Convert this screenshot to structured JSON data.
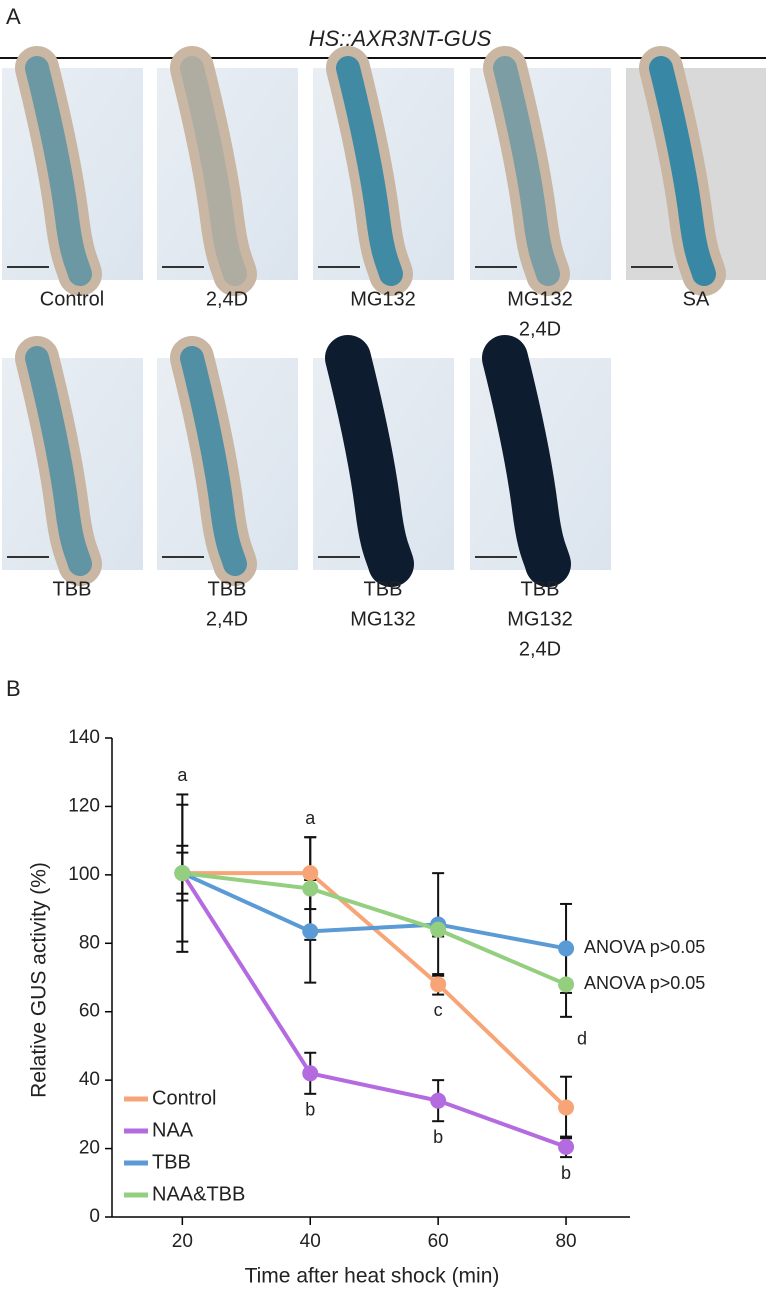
{
  "panel_a": {
    "label": "A",
    "title": "HS::AXR3NT-GUS",
    "images": [
      {
        "caption": [
          "Control"
        ]
      },
      {
        "caption": [
          "2,4D"
        ]
      },
      {
        "caption": [
          "MG132"
        ]
      },
      {
        "caption": [
          "MG132",
          "2,4D"
        ]
      },
      {
        "caption": [
          "SA"
        ]
      },
      {
        "caption": [
          "TBB"
        ]
      },
      {
        "caption": [
          "TBB",
          "2,4D"
        ]
      },
      {
        "caption": [
          "TBB",
          "MG132"
        ]
      },
      {
        "caption": [
          "TBB",
          "MG132",
          "2,4D"
        ]
      }
    ]
  },
  "panel_b": {
    "label": "B"
  },
  "chart_data": {
    "type": "line",
    "xlabel": "Time after heat shock (min)",
    "ylabel": "Relative GUS activity (%)",
    "x": [
      20,
      40,
      60,
      80
    ],
    "xlim": [
      9,
      90
    ],
    "xticks": [
      20,
      40,
      60,
      80
    ],
    "ylim": [
      0,
      140
    ],
    "yticks": [
      0,
      20,
      40,
      60,
      80,
      100,
      120,
      140
    ],
    "legend": "lower-left",
    "series": [
      {
        "name": "Control",
        "color": "#f7a477",
        "values": [
          100.5,
          100.5,
          68,
          32
        ],
        "errors": [
          23,
          10.5,
          3,
          9
        ],
        "point_labels": [
          "a",
          "a",
          "c",
          "d"
        ]
      },
      {
        "name": "NAA",
        "color": "#b46be0",
        "values": [
          100.5,
          42,
          34,
          20.5
        ],
        "errors": [
          20,
          6,
          6,
          3
        ],
        "point_labels": [
          null,
          "b",
          "b",
          "b"
        ]
      },
      {
        "name": "TBB",
        "color": "#5b9bd5",
        "values": [
          100.5,
          83.5,
          85.5,
          78.5
        ],
        "errors": [
          8,
          15,
          15,
          13
        ],
        "end_label": "ANOVA p>0.05"
      },
      {
        "name": "NAA&TBB",
        "color": "#94cf80",
        "values": [
          100.5,
          96,
          84,
          68
        ],
        "errors": [
          6,
          15,
          2,
          9.5
        ],
        "end_label": "ANOVA p>0.05"
      }
    ]
  }
}
